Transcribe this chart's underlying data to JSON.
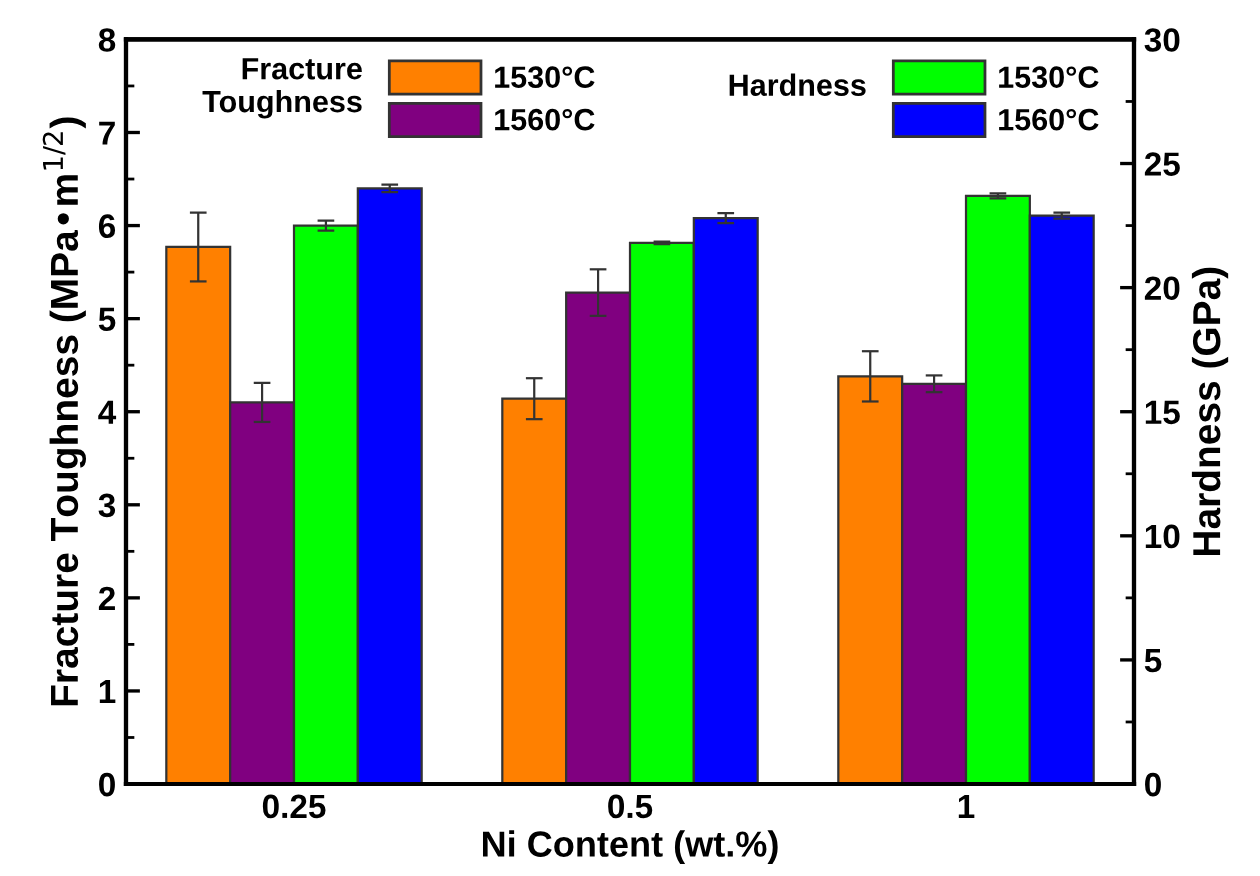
{
  "chart_data": {
    "type": "bar",
    "xlabel": "Ni Content (wt.%)",
    "ylabel": "Fracture Toughness (MPa•m$^{1/2}$)",
    "y2label": "Hardness (GPa)",
    "categories": [
      "0.25",
      "0.5",
      "1"
    ],
    "legend_title": [
      "Fracture\nToughness",
      "Hardness"
    ],
    "series": [
      {
        "name": "1530°C",
        "color": "#ff8000",
        "values": [
          5.77,
          4.14,
          4.38
        ],
        "errors": [
          0.37,
          0.22,
          0.27
        ]
      },
      {
        "name": "1560°C",
        "color": "#800080",
        "values": [
          4.1,
          5.28,
          4.3
        ],
        "errors": [
          0.21,
          0.25,
          0.09
        ]
      },
      {
        "name": "1530°C",
        "color": "#00ff00",
        "axis": "y2",
        "values": [
          22.5,
          21.8,
          23.7
        ],
        "errors": [
          0.2,
          0.05,
          0.1
        ]
      },
      {
        "name": "1560°C",
        "color": "#0000ff",
        "axis": "y2",
        "values": [
          24.0,
          22.8,
          22.9
        ],
        "errors": [
          0.15,
          0.2,
          0.12
        ]
      }
    ],
    "ylim": [
      0,
      8
    ],
    "yticks": [
      0,
      1,
      2,
      3,
      4,
      5,
      6,
      7,
      8
    ],
    "y2lim": [
      0,
      30
    ],
    "y2ticks": [
      0,
      5,
      10,
      15,
      20,
      25,
      30
    ],
    "legend": "top",
    "grid": false
  }
}
